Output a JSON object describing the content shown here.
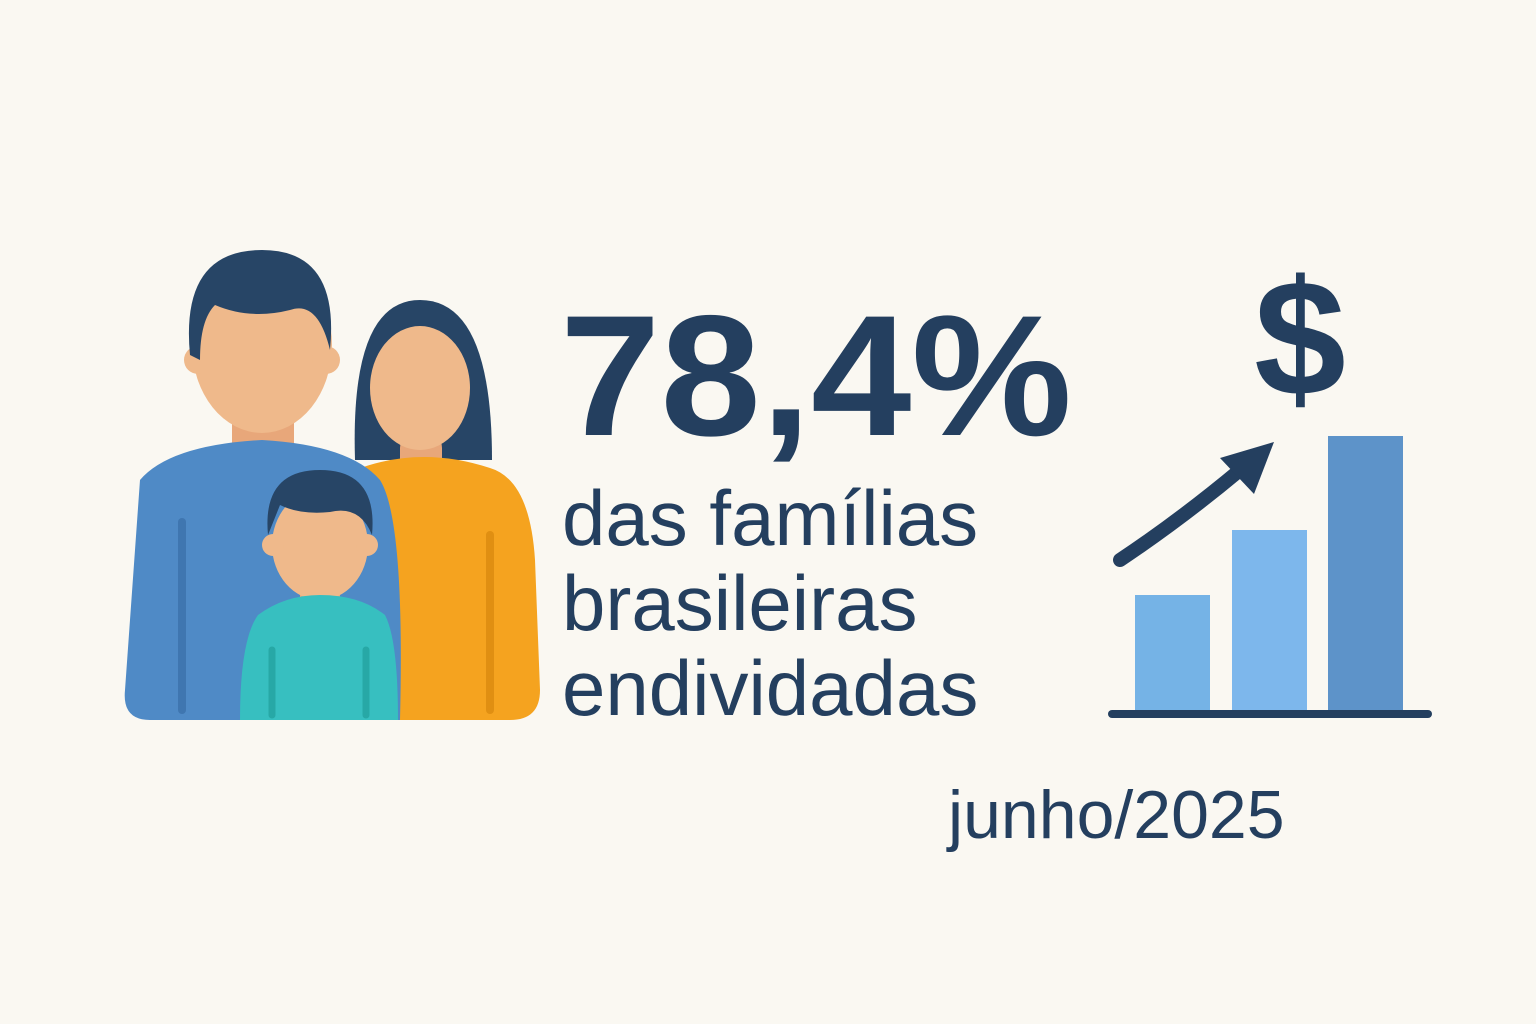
{
  "headline": {
    "value": "78,4%",
    "lines": [
      "das famílias",
      "brasileiras",
      "endividadas"
    ]
  },
  "date": "junho/2025",
  "icon": {
    "symbol": "$"
  }
}
